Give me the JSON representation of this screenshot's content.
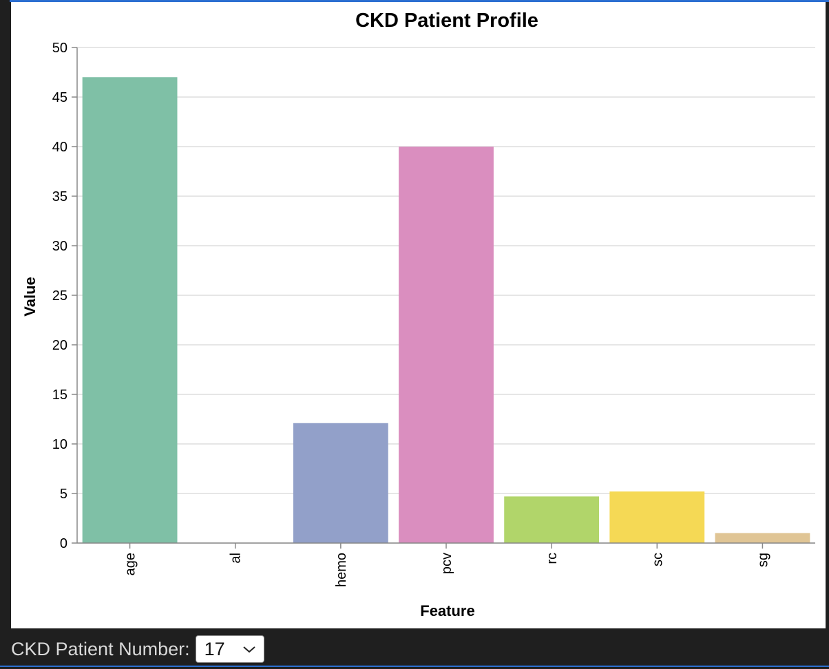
{
  "chart_data": {
    "type": "bar",
    "title": "CKD Patient Profile",
    "xlabel": "Feature",
    "ylabel": "Value",
    "ylim": [
      0,
      50
    ],
    "yticks": [
      0,
      5,
      10,
      15,
      20,
      25,
      30,
      35,
      40,
      45,
      50
    ],
    "grid": true,
    "categories": [
      "age",
      "al",
      "hemo",
      "pcv",
      "rc",
      "sc",
      "sg"
    ],
    "values": [
      47,
      0,
      12.1,
      40,
      4.7,
      5.2,
      1.01
    ],
    "colors": [
      "#7fc0a6",
      "#fc8d62",
      "#92a0c9",
      "#da8ebf",
      "#b1d56a",
      "#f5d955",
      "#e0c595"
    ]
  },
  "controls": {
    "label": "CKD Patient Number:",
    "selected": "17"
  },
  "icons": {
    "dropdown": "chevron-down-icon"
  }
}
